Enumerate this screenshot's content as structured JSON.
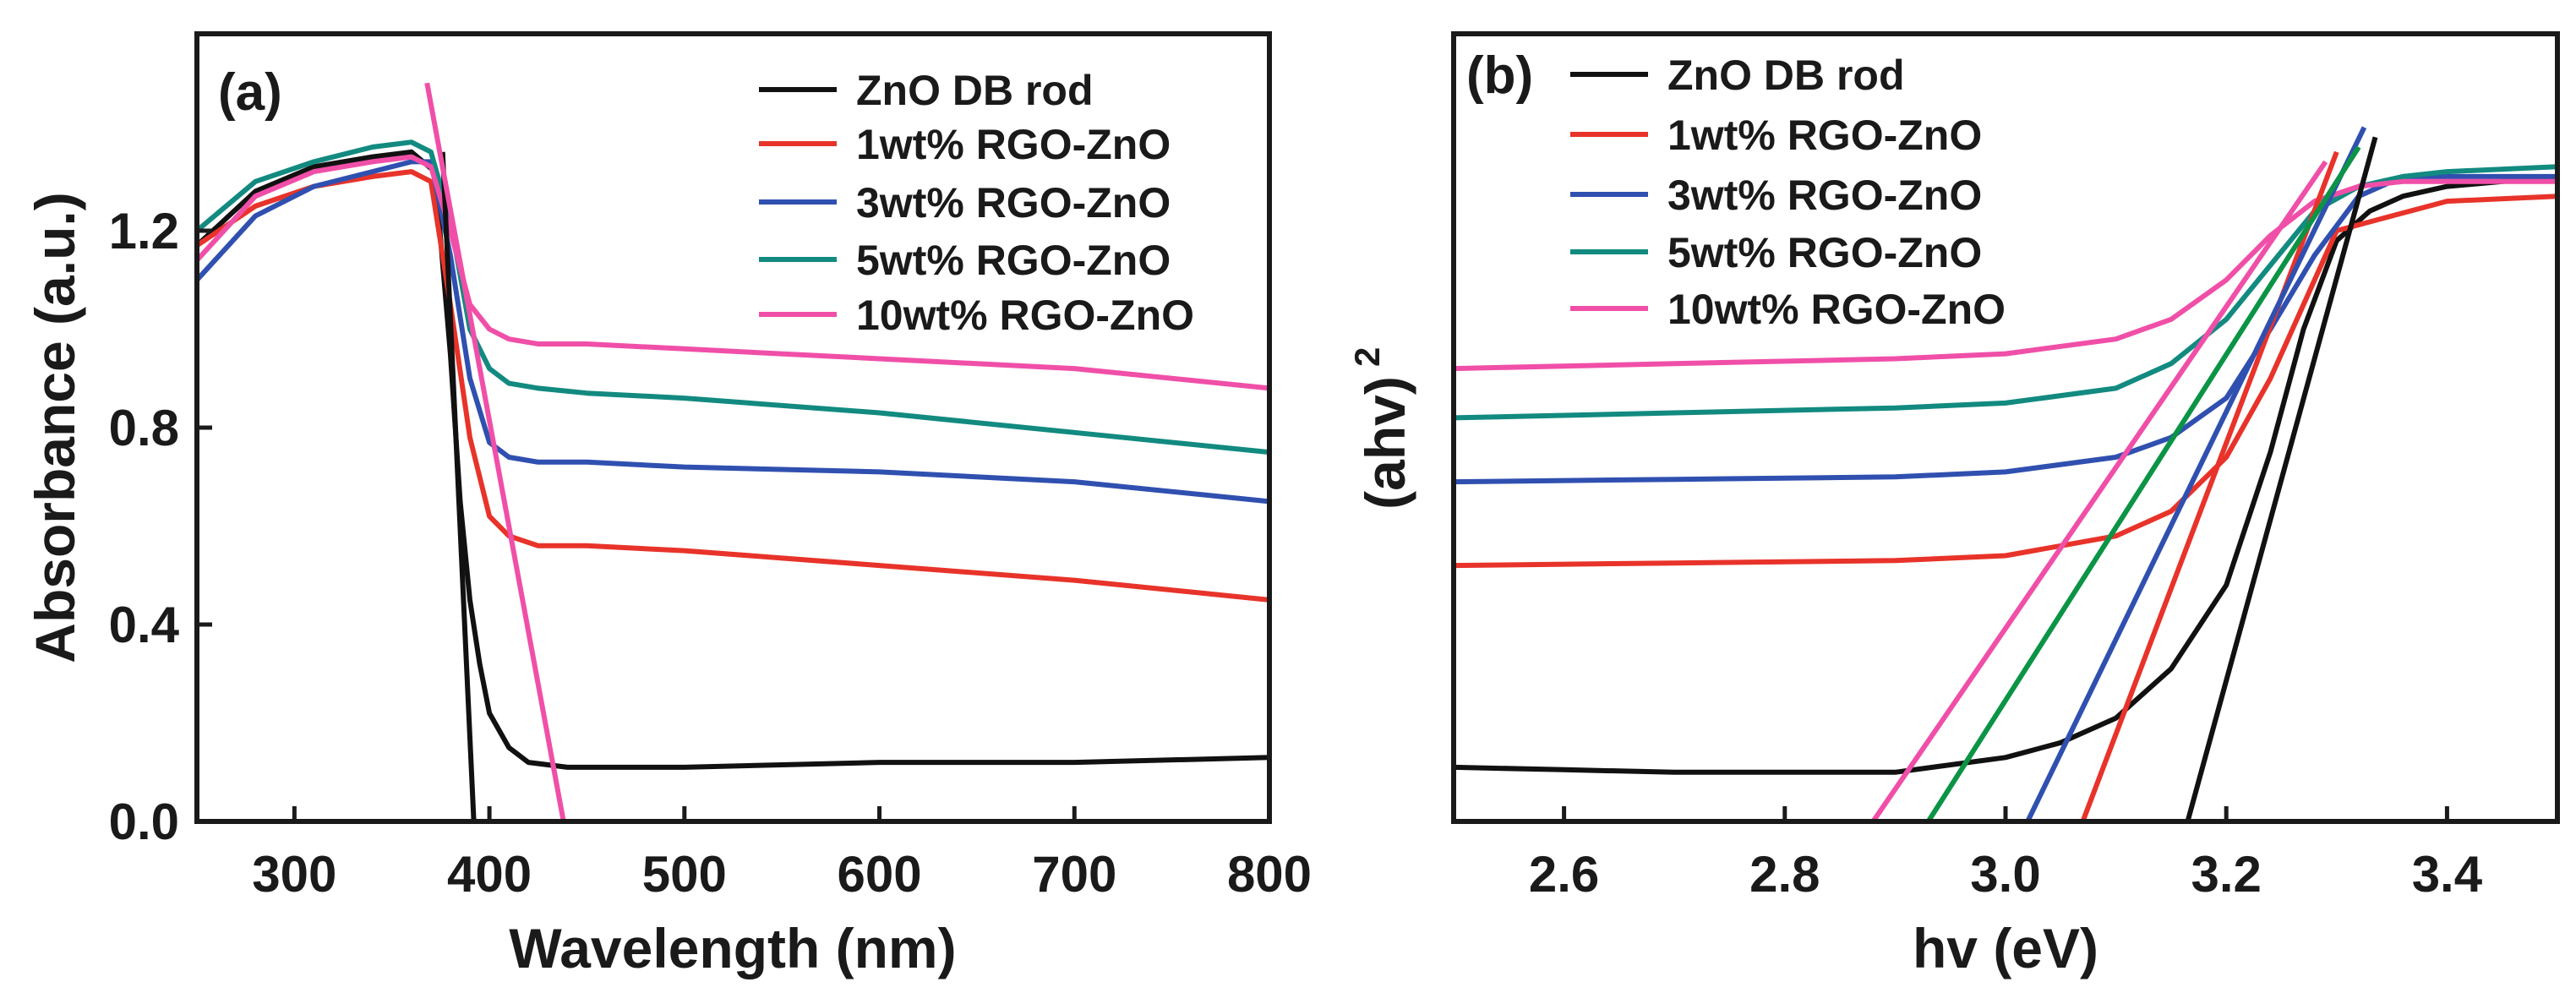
{
  "chart_data": [
    {
      "panel": "(a)",
      "type": "line",
      "xlabel": "Wavelength (nm)",
      "ylabel": "Absorbance (a.u.)",
      "xlim": [
        250,
        800
      ],
      "ylim": [
        0,
        1.6
      ],
      "xticks": [
        300,
        400,
        500,
        600,
        700,
        800
      ],
      "yticks": [
        0.0,
        0.4,
        0.8,
        1.2
      ],
      "xtick_labels": [
        "300",
        "400",
        "500",
        "600",
        "700",
        "800"
      ],
      "ytick_labels": [
        "0.0",
        "0.4",
        "0.8",
        "1.2"
      ],
      "legend_position": "top-right",
      "series": [
        {
          "name": "ZnO DB rod",
          "color": "#111111",
          "x": [
            250,
            280,
            310,
            340,
            360,
            372,
            380,
            385,
            390,
            395,
            400,
            410,
            420,
            440,
            500,
            600,
            700,
            800
          ],
          "y": [
            1.17,
            1.28,
            1.33,
            1.35,
            1.36,
            1.32,
            0.95,
            0.65,
            0.45,
            0.32,
            0.22,
            0.15,
            0.12,
            0.11,
            0.11,
            0.12,
            0.12,
            0.13
          ]
        },
        {
          "name": "1wt% RGO-ZnO",
          "color": "#e8332a",
          "x": [
            250,
            280,
            310,
            340,
            360,
            370,
            380,
            390,
            400,
            410,
            425,
            450,
            500,
            600,
            700,
            800
          ],
          "y": [
            1.17,
            1.25,
            1.29,
            1.31,
            1.32,
            1.3,
            1.05,
            0.78,
            0.62,
            0.58,
            0.56,
            0.56,
            0.55,
            0.52,
            0.49,
            0.45
          ]
        },
        {
          "name": "3wt% RGO-ZnO",
          "color": "#3050b0",
          "x": [
            250,
            280,
            310,
            340,
            360,
            370,
            380,
            390,
            400,
            410,
            425,
            450,
            500,
            600,
            700,
            800
          ],
          "y": [
            1.1,
            1.23,
            1.29,
            1.32,
            1.34,
            1.34,
            1.15,
            0.9,
            0.77,
            0.74,
            0.73,
            0.73,
            0.72,
            0.71,
            0.69,
            0.65
          ]
        },
        {
          "name": "5wt% RGO-ZnO",
          "color": "#128a80",
          "x": [
            250,
            280,
            310,
            340,
            360,
            370,
            380,
            390,
            400,
            410,
            425,
            450,
            500,
            600,
            700,
            800
          ],
          "y": [
            1.2,
            1.3,
            1.34,
            1.37,
            1.38,
            1.36,
            1.22,
            1.0,
            0.92,
            0.89,
            0.88,
            0.87,
            0.86,
            0.83,
            0.79,
            0.75
          ]
        },
        {
          "name": "10wt% RGO-ZnO",
          "color": "#f04fa8",
          "x": [
            250,
            280,
            310,
            340,
            360,
            370,
            380,
            390,
            400,
            410,
            425,
            450,
            500,
            600,
            700,
            800
          ],
          "y": [
            1.14,
            1.27,
            1.32,
            1.34,
            1.35,
            1.33,
            1.2,
            1.05,
            1.0,
            0.98,
            0.97,
            0.97,
            0.96,
            0.94,
            0.92,
            0.88
          ]
        }
      ],
      "tangent_lines": [
        {
          "color": "#111111",
          "x": [
            376,
            392
          ],
          "y": [
            1.36,
            0.0
          ]
        },
        {
          "color": "#f04fa8",
          "x": [
            368,
            438
          ],
          "y": [
            1.5,
            0.0
          ]
        }
      ]
    },
    {
      "panel": "(b)",
      "type": "line",
      "xlabel": "hv (eV)",
      "ylabel": "(ahv)",
      "ylabel_superscript": "2",
      "xlim": [
        2.5,
        3.5
      ],
      "ylim": [
        0,
        1.6
      ],
      "xticks": [
        2.6,
        2.8,
        3.0,
        3.2,
        3.4
      ],
      "xtick_labels": [
        "2.6",
        "2.8",
        "3.0",
        "3.2",
        "3.4"
      ],
      "legend_position": "top-left",
      "series": [
        {
          "name": "ZnO DB rod",
          "color": "#111111",
          "x": [
            2.5,
            2.6,
            2.7,
            2.8,
            2.9,
            3.0,
            3.05,
            3.1,
            3.15,
            3.2,
            3.24,
            3.27,
            3.3,
            3.33,
            3.36,
            3.4,
            3.5
          ],
          "y": [
            0.11,
            0.105,
            0.1,
            0.1,
            0.1,
            0.13,
            0.16,
            0.21,
            0.31,
            0.48,
            0.75,
            1.0,
            1.18,
            1.24,
            1.27,
            1.29,
            1.31
          ]
        },
        {
          "name": "1wt% RGO-ZnO",
          "color": "#e8332a",
          "x": [
            2.5,
            2.7,
            2.9,
            3.0,
            3.1,
            3.15,
            3.2,
            3.24,
            3.27,
            3.3,
            3.35,
            3.4,
            3.5
          ],
          "y": [
            0.52,
            0.525,
            0.53,
            0.54,
            0.58,
            0.63,
            0.74,
            0.9,
            1.05,
            1.2,
            1.23,
            1.26,
            1.27
          ]
        },
        {
          "name": "3wt% RGO-ZnO",
          "color": "#3050b0",
          "x": [
            2.5,
            2.7,
            2.9,
            3.0,
            3.1,
            3.15,
            3.2,
            3.24,
            3.28,
            3.32,
            3.36,
            3.4,
            3.5
          ],
          "y": [
            0.69,
            0.695,
            0.7,
            0.71,
            0.74,
            0.78,
            0.86,
            1.0,
            1.15,
            1.27,
            1.31,
            1.31,
            1.31
          ]
        },
        {
          "name": "5wt% RGO-ZnO",
          "color": "#128a80",
          "x": [
            2.5,
            2.7,
            2.9,
            3.0,
            3.1,
            3.15,
            3.2,
            3.24,
            3.28,
            3.32,
            3.36,
            3.4,
            3.5
          ],
          "y": [
            0.82,
            0.83,
            0.84,
            0.85,
            0.88,
            0.93,
            1.02,
            1.13,
            1.24,
            1.29,
            1.31,
            1.32,
            1.33
          ]
        },
        {
          "name": "10wt% RGO-ZnO",
          "color": "#f04fa8",
          "x": [
            2.5,
            2.7,
            2.9,
            3.0,
            3.1,
            3.15,
            3.2,
            3.24,
            3.28,
            3.32,
            3.36,
            3.4,
            3.5
          ],
          "y": [
            0.92,
            0.93,
            0.94,
            0.95,
            0.98,
            1.02,
            1.1,
            1.19,
            1.26,
            1.29,
            1.3,
            1.3,
            1.3
          ]
        }
      ],
      "tangent_lines": [
        {
          "color": "#111111",
          "x": [
            3.165,
            3.335
          ],
          "y": [
            0.0,
            1.39
          ]
        },
        {
          "color": "#e8332a",
          "x": [
            3.07,
            3.3
          ],
          "y": [
            0.0,
            1.36
          ]
        },
        {
          "color": "#3050b0",
          "x": [
            3.02,
            3.325
          ],
          "y": [
            0.0,
            1.41
          ]
        },
        {
          "color": "#0b9445",
          "x": [
            2.93,
            3.32
          ],
          "y": [
            0.0,
            1.37
          ]
        },
        {
          "color": "#f04fa8",
          "x": [
            2.88,
            3.29
          ],
          "y": [
            0.0,
            1.34
          ]
        }
      ]
    }
  ]
}
